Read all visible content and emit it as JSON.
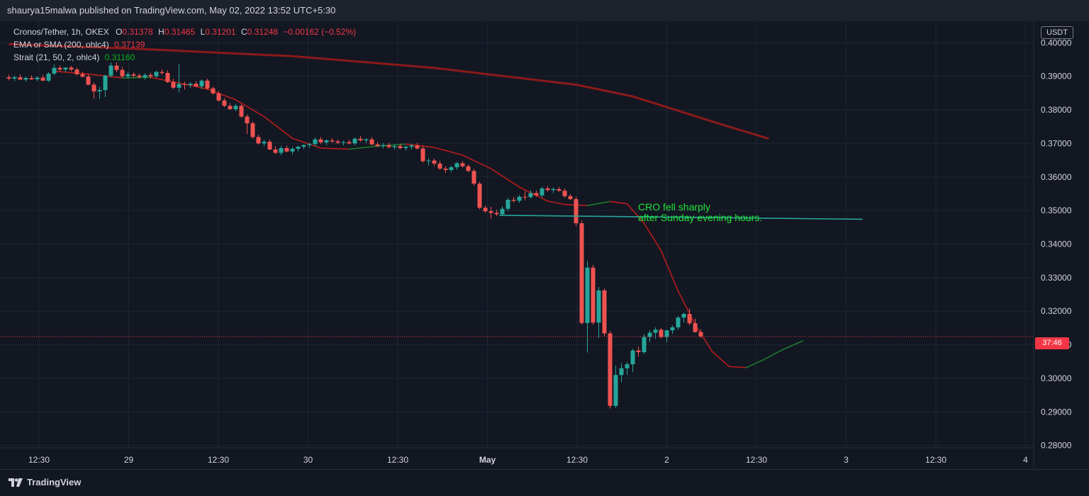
{
  "header": {
    "published_line": "shaurya15malwa published on TradingView.com, May 02, 2022 13:52 UTC+5:30"
  },
  "legend": {
    "symbol": "Cronos/Tether, 1h, OKEX",
    "open_label": "O",
    "open": "0.31378",
    "high_label": "H",
    "high": "0.31465",
    "low_label": "L",
    "low": "0.31201",
    "close_label": "C",
    "close": "0.31248",
    "change": "−0.00162 (−0.52%)",
    "sma_label": "EMA or SMA (200, ohlc4)",
    "sma_value": "0.37139",
    "strait_label": "Strait (21, 50, 2, ohlc4)",
    "strait_value": "0.31160"
  },
  "price_axis": {
    "currency": "USDT",
    "current_price_countdown": "37:46"
  },
  "annotation": {
    "line1": "CRO fell sharply",
    "line2": "after Sunday evening hours."
  },
  "footer": {
    "brand": "TradingView"
  },
  "colors": {
    "background": "#131722",
    "grid": "#1f2433",
    "bull": "#26a69a",
    "bear": "#ef5350",
    "sma": "#8b1a1a",
    "strait_down": "#b71c1c",
    "strait_up": "#1b7a2e",
    "support_line": "#26a69a",
    "annotation_text": "#22e33a",
    "price_line": "#f23645"
  },
  "chart_data": {
    "type": "candlestick",
    "symbol": "Cronos/Tether",
    "interval": "1h",
    "exchange": "OKEX",
    "ylim": [
      0.28,
      0.405
    ],
    "y_ticks": [
      "0.40000",
      "0.39000",
      "0.38000",
      "0.37000",
      "0.36000",
      "0.35000",
      "0.34000",
      "0.33000",
      "0.32000",
      "0.31000",
      "0.30000",
      "0.29000",
      "0.28000"
    ],
    "x_ticks": [
      "12:30",
      "29",
      "12:30",
      "30",
      "12:30",
      "May",
      "12:30",
      "2",
      "12:30",
      "3",
      "12:30",
      "4"
    ],
    "grid": true,
    "current_price": 0.31248,
    "candles": [
      [
        0.3897,
        0.3905,
        0.3888,
        0.3893
      ],
      [
        0.3893,
        0.3902,
        0.3886,
        0.3897
      ],
      [
        0.3897,
        0.3906,
        0.389,
        0.389
      ],
      [
        0.389,
        0.3899,
        0.3884,
        0.3895
      ],
      [
        0.3895,
        0.3903,
        0.3889,
        0.3891
      ],
      [
        0.3891,
        0.39,
        0.3885,
        0.3896
      ],
      [
        0.3896,
        0.3904,
        0.3886,
        0.3887
      ],
      [
        0.3887,
        0.3912,
        0.3883,
        0.3908
      ],
      [
        0.3908,
        0.3935,
        0.3903,
        0.3925
      ],
      [
        0.3925,
        0.3932,
        0.3914,
        0.392
      ],
      [
        0.392,
        0.3927,
        0.3912,
        0.3926
      ],
      [
        0.3926,
        0.3931,
        0.3915,
        0.392
      ],
      [
        0.392,
        0.3926,
        0.3903,
        0.3906
      ],
      [
        0.3906,
        0.3914,
        0.3896,
        0.3899
      ],
      [
        0.3899,
        0.3906,
        0.3873,
        0.3875
      ],
      [
        0.3875,
        0.3882,
        0.3834,
        0.3855
      ],
      [
        0.3855,
        0.3869,
        0.3832,
        0.3859
      ],
      [
        0.3859,
        0.3905,
        0.3838,
        0.3902
      ],
      [
        0.3902,
        0.3941,
        0.3897,
        0.3932
      ],
      [
        0.3932,
        0.3942,
        0.3912,
        0.3919
      ],
      [
        0.3919,
        0.3928,
        0.3896,
        0.39
      ],
      [
        0.39,
        0.3913,
        0.3893,
        0.3906
      ],
      [
        0.3906,
        0.3912,
        0.3897,
        0.3902
      ],
      [
        0.3902,
        0.3908,
        0.3894,
        0.3897
      ],
      [
        0.3897,
        0.3909,
        0.389,
        0.3904
      ],
      [
        0.3904,
        0.3911,
        0.3893,
        0.39
      ],
      [
        0.39,
        0.3917,
        0.3896,
        0.3913
      ],
      [
        0.3913,
        0.3921,
        0.3905,
        0.391
      ],
      [
        0.391,
        0.3918,
        0.388,
        0.3883
      ],
      [
        0.3883,
        0.3893,
        0.3862,
        0.3866
      ],
      [
        0.3866,
        0.3937,
        0.3852,
        0.3877
      ],
      [
        0.3877,
        0.3884,
        0.386,
        0.3874
      ],
      [
        0.3874,
        0.3882,
        0.3865,
        0.3878
      ],
      [
        0.3878,
        0.3886,
        0.3868,
        0.387
      ],
      [
        0.387,
        0.3891,
        0.3862,
        0.3887
      ],
      [
        0.3887,
        0.3893,
        0.386,
        0.3864
      ],
      [
        0.3864,
        0.387,
        0.3845,
        0.3849
      ],
      [
        0.3849,
        0.3856,
        0.3824,
        0.3828
      ],
      [
        0.3828,
        0.3835,
        0.3808,
        0.3812
      ],
      [
        0.3812,
        0.382,
        0.38,
        0.3802
      ],
      [
        0.3802,
        0.3818,
        0.3796,
        0.3812
      ],
      [
        0.3812,
        0.3818,
        0.3776,
        0.378
      ],
      [
        0.378,
        0.3786,
        0.3728,
        0.376
      ],
      [
        0.376,
        0.3766,
        0.3714,
        0.3719
      ],
      [
        0.3719,
        0.3726,
        0.3697,
        0.37
      ],
      [
        0.37,
        0.3711,
        0.3692,
        0.3705
      ],
      [
        0.3705,
        0.3712,
        0.368,
        0.3682
      ],
      [
        0.3682,
        0.3692,
        0.3668,
        0.3672
      ],
      [
        0.3672,
        0.3693,
        0.3665,
        0.3686
      ],
      [
        0.3686,
        0.3694,
        0.3673,
        0.3676
      ],
      [
        0.3676,
        0.369,
        0.3668,
        0.3684
      ],
      [
        0.3684,
        0.3693,
        0.3676,
        0.369
      ],
      [
        0.369,
        0.3698,
        0.3683,
        0.3695
      ],
      [
        0.3695,
        0.3702,
        0.3687,
        0.3698
      ],
      [
        0.3698,
        0.3718,
        0.3692,
        0.3712
      ],
      [
        0.3712,
        0.3719,
        0.3698,
        0.3703
      ],
      [
        0.3703,
        0.3712,
        0.3695,
        0.3709
      ],
      [
        0.3709,
        0.3716,
        0.3702,
        0.3706
      ],
      [
        0.3706,
        0.3712,
        0.3698,
        0.3702
      ],
      [
        0.3702,
        0.3708,
        0.3694,
        0.3704
      ],
      [
        0.3704,
        0.3711,
        0.3697,
        0.37
      ],
      [
        0.37,
        0.3718,
        0.3694,
        0.3714
      ],
      [
        0.3714,
        0.3722,
        0.3705,
        0.3709
      ],
      [
        0.3709,
        0.3716,
        0.3701,
        0.3712
      ],
      [
        0.3712,
        0.3719,
        0.3695,
        0.3697
      ],
      [
        0.3697,
        0.3704,
        0.3688,
        0.3692
      ],
      [
        0.3692,
        0.3701,
        0.3685,
        0.3695
      ],
      [
        0.3695,
        0.3702,
        0.3686,
        0.3689
      ],
      [
        0.3689,
        0.3697,
        0.3682,
        0.3692
      ],
      [
        0.3692,
        0.3699,
        0.3683,
        0.3686
      ],
      [
        0.3686,
        0.3694,
        0.3679,
        0.369
      ],
      [
        0.369,
        0.3698,
        0.3682,
        0.3694
      ],
      [
        0.3694,
        0.3702,
        0.3682,
        0.3685
      ],
      [
        0.3685,
        0.3692,
        0.3643,
        0.3647
      ],
      [
        0.3647,
        0.3656,
        0.3634,
        0.3649
      ],
      [
        0.3649,
        0.3655,
        0.3632,
        0.364
      ],
      [
        0.364,
        0.3648,
        0.3621,
        0.3625
      ],
      [
        0.3625,
        0.3632,
        0.3612,
        0.3621
      ],
      [
        0.3621,
        0.3634,
        0.3614,
        0.3629
      ],
      [
        0.3629,
        0.3645,
        0.3622,
        0.3641
      ],
      [
        0.3641,
        0.3647,
        0.3628,
        0.3632
      ],
      [
        0.3632,
        0.3638,
        0.3614,
        0.3618
      ],
      [
        0.3618,
        0.3624,
        0.3574,
        0.358
      ],
      [
        0.358,
        0.3586,
        0.3504,
        0.3508
      ],
      [
        0.3508,
        0.3515,
        0.3493,
        0.3498
      ],
      [
        0.3498,
        0.3511,
        0.3476,
        0.3493
      ],
      [
        0.3493,
        0.3502,
        0.3484,
        0.3489
      ],
      [
        0.3489,
        0.3513,
        0.3484,
        0.3505
      ],
      [
        0.3505,
        0.3538,
        0.3499,
        0.3532
      ],
      [
        0.3532,
        0.3541,
        0.3524,
        0.3529
      ],
      [
        0.3529,
        0.3546,
        0.3523,
        0.3541
      ],
      [
        0.3541,
        0.3558,
        0.3531,
        0.354
      ],
      [
        0.354,
        0.3561,
        0.3536,
        0.3552
      ],
      [
        0.3552,
        0.356,
        0.3541,
        0.3545
      ],
      [
        0.3545,
        0.3571,
        0.3539,
        0.3566
      ],
      [
        0.3566,
        0.3573,
        0.3556,
        0.3561
      ],
      [
        0.3561,
        0.3569,
        0.3552,
        0.3564
      ],
      [
        0.3564,
        0.357,
        0.3556,
        0.3559
      ],
      [
        0.3559,
        0.3566,
        0.3538,
        0.3543
      ],
      [
        0.3543,
        0.3549,
        0.3531,
        0.3534
      ],
      [
        0.3534,
        0.3541,
        0.3454,
        0.3462
      ],
      [
        0.3462,
        0.347,
        0.316,
        0.3165
      ],
      [
        0.3165,
        0.335,
        0.3077,
        0.333
      ],
      [
        0.333,
        0.3338,
        0.316,
        0.3166
      ],
      [
        0.3166,
        0.3272,
        0.3121,
        0.3262
      ],
      [
        0.3262,
        0.3268,
        0.3125,
        0.3134
      ],
      [
        0.3134,
        0.3142,
        0.291,
        0.2918
      ],
      [
        0.2918,
        0.3038,
        0.2912,
        0.301
      ],
      [
        0.301,
        0.3045,
        0.2988,
        0.303
      ],
      [
        0.303,
        0.3048,
        0.301,
        0.3042
      ],
      [
        0.3042,
        0.3088,
        0.3018,
        0.3083
      ],
      [
        0.3083,
        0.3095,
        0.3065,
        0.3078
      ],
      [
        0.3078,
        0.3132,
        0.3072,
        0.3123
      ],
      [
        0.3123,
        0.3144,
        0.3108,
        0.3136
      ],
      [
        0.3136,
        0.3152,
        0.3118,
        0.3145
      ],
      [
        0.3145,
        0.315,
        0.3119,
        0.3123
      ],
      [
        0.3123,
        0.3145,
        0.3108,
        0.3143
      ],
      [
        0.3143,
        0.3158,
        0.3133,
        0.3152
      ],
      [
        0.3152,
        0.3186,
        0.3145,
        0.3181
      ],
      [
        0.3181,
        0.3196,
        0.3166,
        0.3192
      ],
      [
        0.3192,
        0.3208,
        0.3159,
        0.3164
      ],
      [
        0.3164,
        0.3178,
        0.3136,
        0.3138
      ],
      [
        0.3138,
        0.3146,
        0.312,
        0.3125
      ]
    ],
    "sma": {
      "name": "EMA or SMA (200, ohlc4)",
      "points": [
        [
          0,
          0.3996
        ],
        [
          25,
          0.398
        ],
        [
          50,
          0.396
        ],
        [
          75,
          0.3925
        ],
        [
          100,
          0.3875
        ],
        [
          110,
          0.384
        ],
        [
          125,
          0.376
        ],
        [
          134,
          0.3714
        ]
      ]
    },
    "strait": {
      "name": "Strait (21, 50, 2, ohlc4)",
      "points": [
        [
          8,
          0.3915
        ],
        [
          15,
          0.3905
        ],
        [
          20,
          0.3895
        ],
        [
          25,
          0.3897
        ],
        [
          30,
          0.388
        ],
        [
          35,
          0.3862
        ],
        [
          40,
          0.383
        ],
        [
          45,
          0.378
        ],
        [
          50,
          0.3715
        ],
        [
          55,
          0.3686
        ],
        [
          60,
          0.3683
        ],
        [
          65,
          0.3692
        ],
        [
          70,
          0.3698
        ],
        [
          75,
          0.3688
        ],
        [
          80,
          0.3665
        ],
        [
          85,
          0.3625
        ],
        [
          90,
          0.357
        ],
        [
          95,
          0.3528
        ],
        [
          98,
          0.3518
        ],
        [
          102,
          0.3515
        ],
        [
          106,
          0.3527
        ],
        [
          109,
          0.352
        ],
        [
          112,
          0.3462
        ],
        [
          115,
          0.338
        ],
        [
          118,
          0.326
        ],
        [
          121,
          0.316
        ],
        [
          124,
          0.308
        ],
        [
          127,
          0.3035
        ],
        [
          130,
          0.3032
        ],
        [
          133,
          0.3055
        ],
        [
          136,
          0.3082
        ],
        [
          140,
          0.3112
        ]
      ]
    },
    "support_line": {
      "from": [
        86.5,
        0.3486
      ],
      "to": [
        150.5,
        0.3474
      ]
    }
  }
}
